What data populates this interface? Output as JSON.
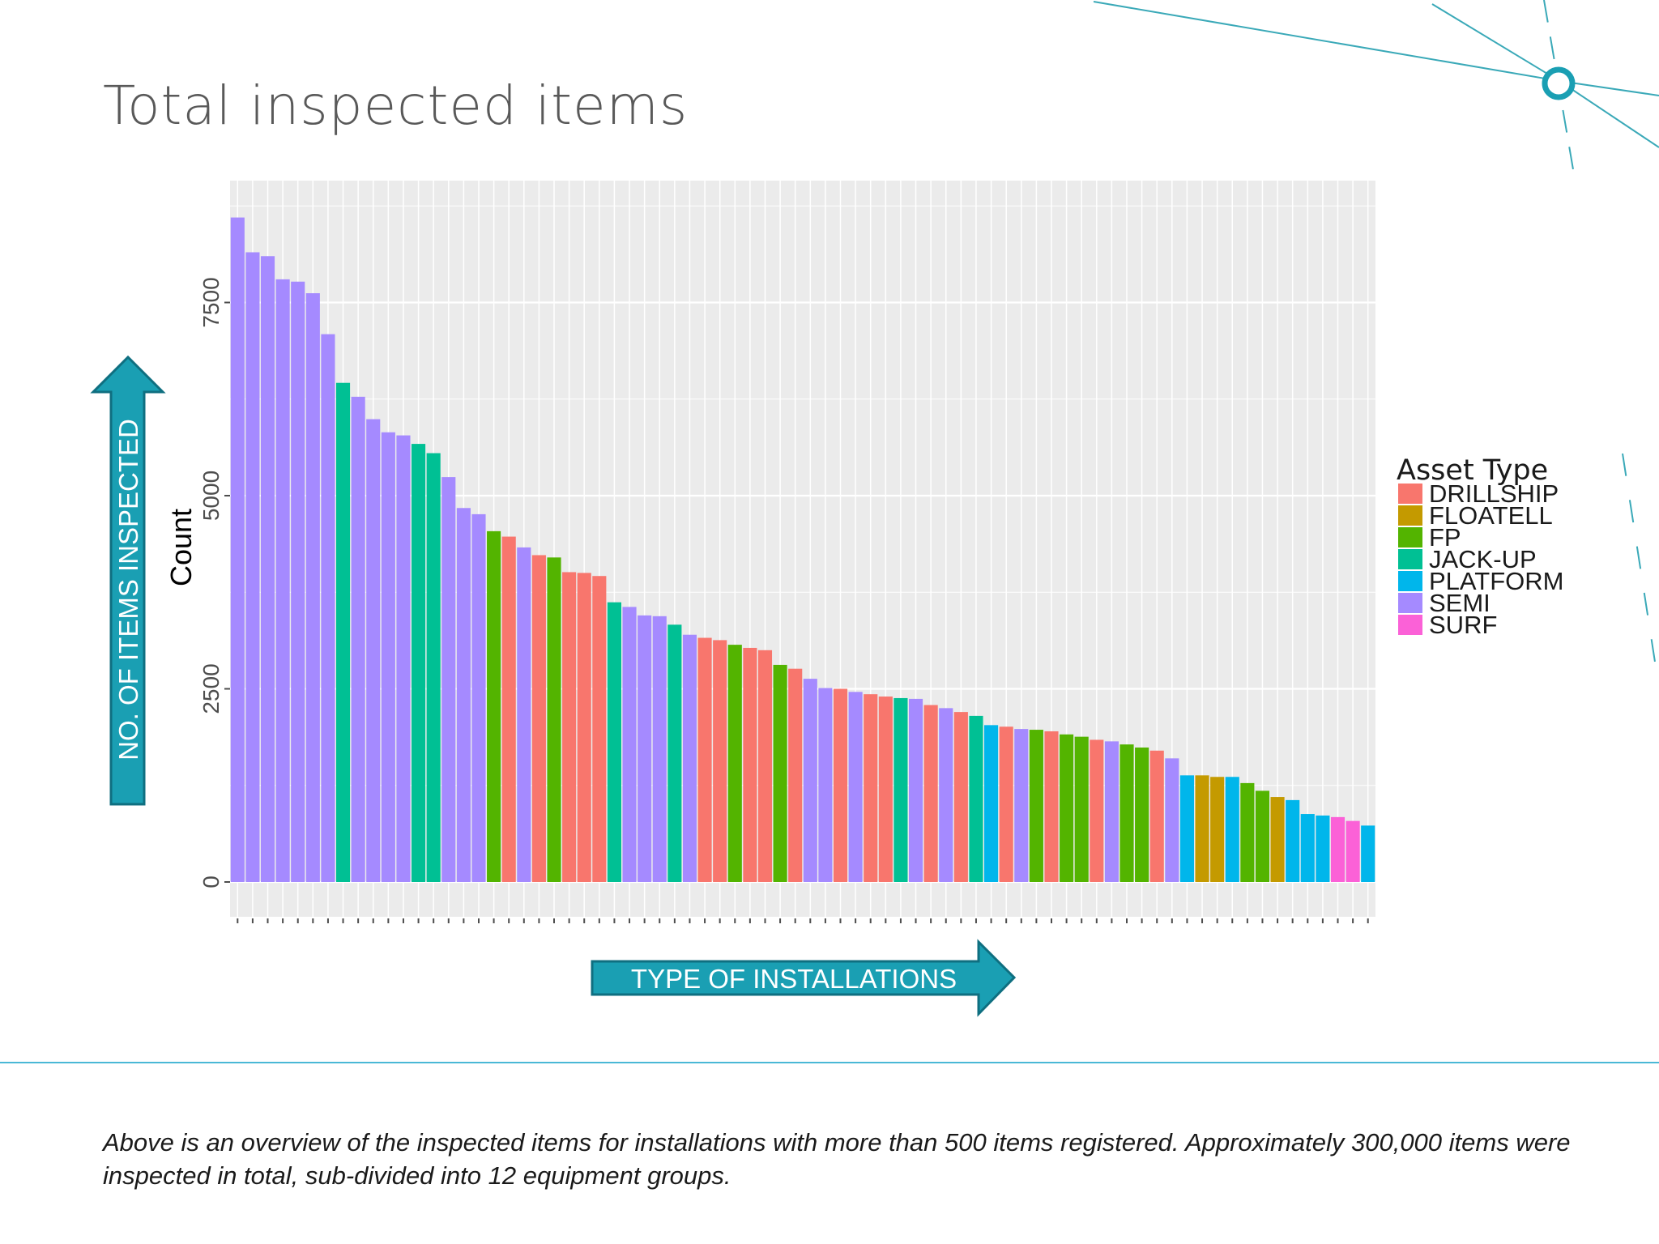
{
  "slide": {
    "title": "Total inspected items",
    "caption": "Above is an overview of the inspected items for installations with more than 500 items registered. Approximately 300,000 items were inspected in total, sub-divided into 12 equipment groups.",
    "y_arrow_label": "NO. OF ITEMS INSPECTED",
    "x_arrow_label": "TYPE OF INSTALLATIONS",
    "accent_color": "#1a9fb3",
    "rule_color": "#4ab8d6"
  },
  "chart_data": {
    "type": "bar",
    "title": "",
    "xlabel": "",
    "ylabel": "Count",
    "ylim": [
      0,
      8950
    ],
    "yticks": [
      0,
      2500,
      5000,
      7500
    ],
    "grid": true,
    "legend_position": "right",
    "legend_title": "Asset Type",
    "categories": [
      {
        "name": "DRILLSHIP",
        "color": "#f8766d"
      },
      {
        "name": "FLOATELL",
        "color": "#c49a00"
      },
      {
        "name": "FP",
        "color": "#53b400"
      },
      {
        "name": "JACK-UP",
        "color": "#00c094"
      },
      {
        "name": "PLATFORM",
        "color": "#00b6eb"
      },
      {
        "name": "SEMI",
        "color": "#a58aff"
      },
      {
        "name": "SURF",
        "color": "#fb61d7"
      }
    ],
    "bars": [
      {
        "type": "SEMI",
        "value": 8600
      },
      {
        "type": "SEMI",
        "value": 8150
      },
      {
        "type": "SEMI",
        "value": 8100
      },
      {
        "type": "SEMI",
        "value": 7800
      },
      {
        "type": "SEMI",
        "value": 7770
      },
      {
        "type": "SEMI",
        "value": 7620
      },
      {
        "type": "SEMI",
        "value": 7090
      },
      {
        "type": "JACK-UP",
        "value": 6460
      },
      {
        "type": "SEMI",
        "value": 6280
      },
      {
        "type": "SEMI",
        "value": 5990
      },
      {
        "type": "SEMI",
        "value": 5820
      },
      {
        "type": "SEMI",
        "value": 5780
      },
      {
        "type": "JACK-UP",
        "value": 5670
      },
      {
        "type": "JACK-UP",
        "value": 5550
      },
      {
        "type": "SEMI",
        "value": 5240
      },
      {
        "type": "SEMI",
        "value": 4840
      },
      {
        "type": "SEMI",
        "value": 4760
      },
      {
        "type": "FP",
        "value": 4540
      },
      {
        "type": "DRILLSHIP",
        "value": 4470
      },
      {
        "type": "SEMI",
        "value": 4330
      },
      {
        "type": "DRILLSHIP",
        "value": 4230
      },
      {
        "type": "FP",
        "value": 4200
      },
      {
        "type": "DRILLSHIP",
        "value": 4010
      },
      {
        "type": "DRILLSHIP",
        "value": 4000
      },
      {
        "type": "DRILLSHIP",
        "value": 3960
      },
      {
        "type": "JACK-UP",
        "value": 3620
      },
      {
        "type": "SEMI",
        "value": 3560
      },
      {
        "type": "SEMI",
        "value": 3450
      },
      {
        "type": "SEMI",
        "value": 3440
      },
      {
        "type": "JACK-UP",
        "value": 3330
      },
      {
        "type": "SEMI",
        "value": 3200
      },
      {
        "type": "DRILLSHIP",
        "value": 3160
      },
      {
        "type": "DRILLSHIP",
        "value": 3130
      },
      {
        "type": "FP",
        "value": 3070
      },
      {
        "type": "DRILLSHIP",
        "value": 3030
      },
      {
        "type": "DRILLSHIP",
        "value": 3000
      },
      {
        "type": "FP",
        "value": 2810
      },
      {
        "type": "DRILLSHIP",
        "value": 2760
      },
      {
        "type": "SEMI",
        "value": 2630
      },
      {
        "type": "SEMI",
        "value": 2510
      },
      {
        "type": "DRILLSHIP",
        "value": 2500
      },
      {
        "type": "SEMI",
        "value": 2460
      },
      {
        "type": "DRILLSHIP",
        "value": 2430
      },
      {
        "type": "DRILLSHIP",
        "value": 2400
      },
      {
        "type": "JACK-UP",
        "value": 2380
      },
      {
        "type": "SEMI",
        "value": 2370
      },
      {
        "type": "DRILLSHIP",
        "value": 2290
      },
      {
        "type": "SEMI",
        "value": 2250
      },
      {
        "type": "DRILLSHIP",
        "value": 2200
      },
      {
        "type": "JACK-UP",
        "value": 2150
      },
      {
        "type": "PLATFORM",
        "value": 2030
      },
      {
        "type": "DRILLSHIP",
        "value": 2010
      },
      {
        "type": "SEMI",
        "value": 1980
      },
      {
        "type": "FP",
        "value": 1970
      },
      {
        "type": "DRILLSHIP",
        "value": 1950
      },
      {
        "type": "FP",
        "value": 1910
      },
      {
        "type": "FP",
        "value": 1880
      },
      {
        "type": "DRILLSHIP",
        "value": 1840
      },
      {
        "type": "SEMI",
        "value": 1820
      },
      {
        "type": "FP",
        "value": 1780
      },
      {
        "type": "FP",
        "value": 1740
      },
      {
        "type": "DRILLSHIP",
        "value": 1700
      },
      {
        "type": "SEMI",
        "value": 1600
      },
      {
        "type": "PLATFORM",
        "value": 1380
      },
      {
        "type": "FLOATELL",
        "value": 1380
      },
      {
        "type": "FLOATELL",
        "value": 1360
      },
      {
        "type": "PLATFORM",
        "value": 1360
      },
      {
        "type": "FP",
        "value": 1280
      },
      {
        "type": "FP",
        "value": 1180
      },
      {
        "type": "FLOATELL",
        "value": 1100
      },
      {
        "type": "PLATFORM",
        "value": 1060
      },
      {
        "type": "PLATFORM",
        "value": 880
      },
      {
        "type": "PLATFORM",
        "value": 860
      },
      {
        "type": "SURF",
        "value": 840
      },
      {
        "type": "SURF",
        "value": 790
      },
      {
        "type": "PLATFORM",
        "value": 730
      }
    ]
  }
}
